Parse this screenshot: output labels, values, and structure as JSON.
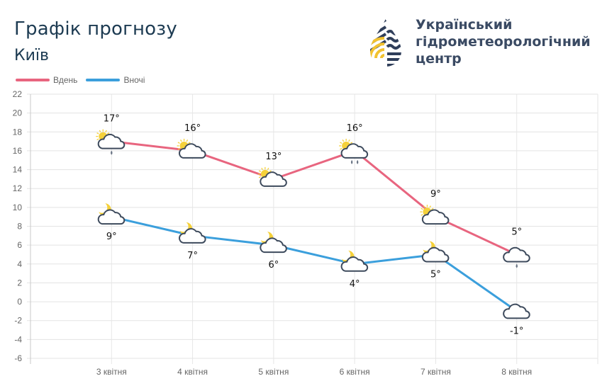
{
  "header": {
    "title": "Графік прогнозу",
    "city": "Київ"
  },
  "logo": {
    "line1": "Український",
    "line2": "гідрометеорологічний",
    "line3": "центр",
    "colors": {
      "navy": "#2f3e5a",
      "yellow": "#f2c230"
    }
  },
  "legend": [
    {
      "label": "Вдень",
      "color": "#e8657f"
    },
    {
      "label": "Вночі",
      "color": "#3b9fdc"
    }
  ],
  "chart_data": {
    "type": "line",
    "title": "Графік прогнозу",
    "subtitle": "Київ",
    "xlabel": "",
    "ylabel": "",
    "categories": [
      "3 квітня",
      "4 квітня",
      "5 квітня",
      "6 квітня",
      "7 квітня",
      "8 квітня"
    ],
    "series": [
      {
        "name": "Вдень",
        "color": "#e8657f",
        "values": [
          17,
          16,
          13,
          16,
          9,
          5
        ],
        "labels": [
          "17°",
          "16°",
          "13°",
          "16°",
          "9°",
          "5°"
        ],
        "icons": [
          "sun-cloud-light-rain",
          "sun-cloud",
          "sun-cloud",
          "sun-cloud-rain",
          "sun-cloud",
          "cloud-light-rain"
        ]
      },
      {
        "name": "Вночі",
        "color": "#3b9fdc",
        "values": [
          9,
          7,
          6,
          4,
          5,
          -1
        ],
        "labels": [
          "9°",
          "7°",
          "6°",
          "4°",
          "5°",
          "-1°"
        ],
        "icons": [
          "moon-cloud",
          "moon-cloud",
          "moon-cloud",
          "moon-cloud",
          "moon-cloud",
          "cloud"
        ]
      }
    ],
    "yticks": [
      22,
      20,
      18,
      16,
      14,
      12,
      10,
      8,
      6,
      4,
      2,
      0,
      -2,
      -4,
      -6
    ],
    "ylim": [
      -6,
      22
    ],
    "grid": true,
    "legend_position": "top-left"
  }
}
